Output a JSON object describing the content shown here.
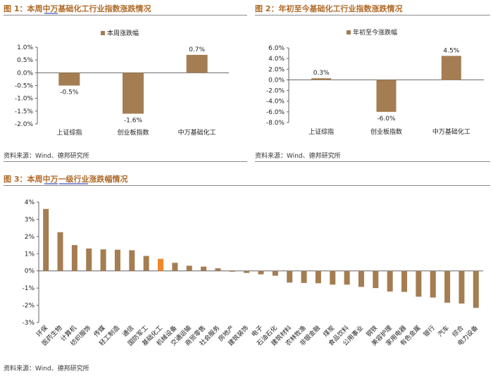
{
  "colors": {
    "bar": "#a47d52",
    "highlight": "#f0862a",
    "title": "#b06a28",
    "underline": "#3b56c4",
    "axis": "#666666"
  },
  "figures": [
    {
      "title": "图 1：本周中万基础化工行业指数涨跌情况",
      "source": "资料来源：Wind、德邦研究所"
    },
    {
      "title": "图 2：年初至今基础化工行业指数涨跌情况",
      "source": "资料来源：Wind、德邦研究所"
    },
    {
      "title": "图 3：本周中万一级行业涨跌幅情况",
      "source": "资料来源：Wind、德邦研究所"
    }
  ],
  "chart_data": [
    {
      "type": "bar",
      "legend": "本周涨跌幅",
      "categories": [
        "上证综指",
        "创业板指数",
        "中万基础化工"
      ],
      "values": [
        -0.5,
        -1.6,
        0.7
      ],
      "value_labels": [
        "-0.5%",
        "-1.6%",
        "0.7%"
      ],
      "ylim": [
        -2.0,
        1.0
      ],
      "yticks": [
        "1.0%",
        "0.5%",
        "0.0%",
        "-0.5%",
        "-1.0%",
        "-1.5%",
        "-2.0%"
      ]
    },
    {
      "type": "bar",
      "legend": "年初至今涨跌幅",
      "categories": [
        "上证综指",
        "创业板指数",
        "中万基础化工"
      ],
      "values": [
        0.3,
        -6.0,
        4.5
      ],
      "value_labels": [
        "0.3%",
        "-6.0%",
        "4.5%"
      ],
      "ylim": [
        -8.0,
        6.0
      ],
      "yticks": [
        "6.0%",
        "4.0%",
        "2.0%",
        "0.0%",
        "-2.0%",
        "-4.0%",
        "-6.0%",
        "-8.0%"
      ]
    },
    {
      "type": "bar",
      "categories": [
        "环保",
        "医药生物",
        "计算机",
        "纺织服饰",
        "传媒",
        "轻工制造",
        "通信",
        "国防军工",
        "基础化工",
        "机械设备",
        "交通运输",
        "商贸零售",
        "社会服务",
        "房地产",
        "建筑装饰",
        "电子",
        "石油石化",
        "建筑材料",
        "农林牧渔",
        "非银金融",
        "煤炭",
        "食品饮料",
        "公用事业",
        "钢铁",
        "美容护理",
        "家用电器",
        "有色金属",
        "银行",
        "汽车",
        "综合",
        "电力设备"
      ],
      "values": [
        3.6,
        2.25,
        1.5,
        1.3,
        1.25,
        1.23,
        1.2,
        0.87,
        0.7,
        0.47,
        0.3,
        0.25,
        0.15,
        -0.05,
        -0.12,
        -0.2,
        -0.28,
        -0.68,
        -0.7,
        -0.72,
        -0.8,
        -0.8,
        -0.93,
        -1.0,
        -1.2,
        -1.22,
        -1.5,
        -1.55,
        -1.85,
        -1.9,
        -2.15
      ],
      "highlight": "基础化工",
      "ylim": [
        -3,
        4
      ],
      "yticks": [
        "4%",
        "3%",
        "2%",
        "1%",
        "0%",
        "-1%",
        "-2%",
        "-3%"
      ]
    }
  ]
}
